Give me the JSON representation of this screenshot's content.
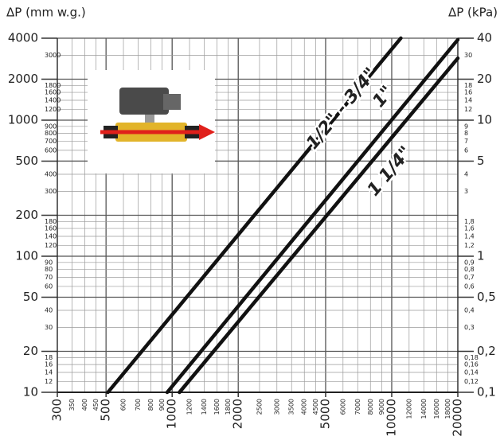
{
  "chart_data": {
    "type": "line",
    "ylabel": "ΔP (mm w.g.)",
    "y2label": "ΔP (kPa)",
    "log_x": true,
    "log_y": true,
    "grid": true,
    "xlim": [
      300,
      20000
    ],
    "xticks": [
      300,
      500,
      1000,
      2000,
      5000,
      10000,
      20000
    ],
    "xminor": [
      350,
      400,
      450,
      600,
      700,
      800,
      900,
      1200,
      1400,
      1600,
      1800,
      2500,
      3000,
      3500,
      4000,
      4500,
      6000,
      7000,
      8000,
      9000,
      12000,
      14000,
      16000,
      18000
    ],
    "ylim": [
      10,
      4000
    ],
    "yticks": [
      10,
      20,
      50,
      100,
      200,
      500,
      1000,
      2000,
      4000
    ],
    "yminor": [
      3000,
      1800,
      1600,
      1400,
      1200,
      900,
      800,
      700,
      600,
      400,
      300,
      180,
      160,
      140,
      120,
      90,
      80,
      70,
      60,
      40,
      30,
      18,
      16,
      14,
      12
    ],
    "y2lim": [
      0.1,
      40
    ],
    "y2ticks": [
      40,
      20,
      10,
      5,
      1,
      {
        "value": 0.5,
        "label": "0,5"
      },
      {
        "value": 0.2,
        "label": "0,2"
      },
      {
        "value": 0.1,
        "label": "0,1"
      }
    ],
    "y2minor": [
      30,
      18,
      16,
      14,
      12,
      9,
      8,
      7,
      6,
      4,
      3,
      {
        "value": 1.8,
        "label": "1,8"
      },
      {
        "value": 1.6,
        "label": "1,6"
      },
      {
        "value": 1.4,
        "label": "1,4"
      },
      {
        "value": 1.2,
        "label": "1,2"
      },
      {
        "value": 0.9,
        "label": "0,9"
      },
      {
        "value": 0.8,
        "label": "0,8"
      },
      {
        "value": 0.7,
        "label": "0,7"
      },
      {
        "value": 0.6,
        "label": "0,6"
      },
      {
        "value": 0.4,
        "label": "0,4"
      },
      {
        "value": 0.3,
        "label": "0,3"
      },
      {
        "value": 0.18,
        "label": "0,18"
      },
      {
        "value": 0.16,
        "label": "0,16"
      },
      {
        "value": 0.14,
        "label": "0,14"
      },
      {
        "value": 0.12,
        "label": "0,12"
      }
    ],
    "series": [
      {
        "name": "1/2\" - 3/4\"",
        "color": "#111111",
        "x": [
          510,
          11000
        ],
        "values": [
          10,
          4000
        ]
      },
      {
        "name": "1\"",
        "color": "#111111",
        "x": [
          950,
          20000
        ],
        "values": [
          10,
          3900
        ]
      },
      {
        "name": "1 1/4\"",
        "color": "#111111",
        "x": [
          1080,
          20000
        ],
        "values": [
          10,
          2850
        ]
      }
    ]
  }
}
